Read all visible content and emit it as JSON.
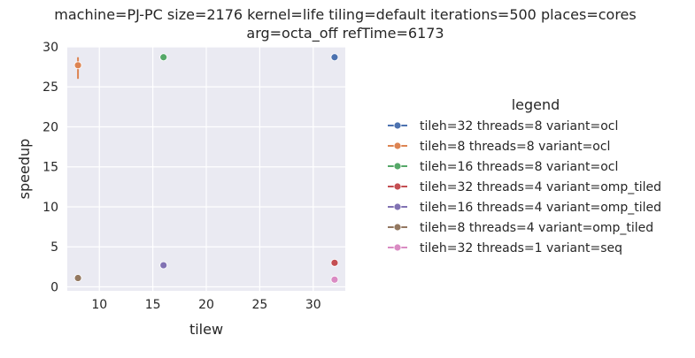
{
  "chart_data": {
    "type": "scatter",
    "title_line1": "machine=PJ-PC size=2176 kernel=life tiling=default iterations=500 places=cores",
    "title_line2": "arg=octa_off refTime=6173",
    "xlabel": "tilew",
    "ylabel": "speedup",
    "xlim": [
      7,
      33
    ],
    "ylim": [
      -0.5,
      30
    ],
    "xticks": [
      10,
      15,
      20,
      25,
      30
    ],
    "yticks": [
      0,
      5,
      10,
      15,
      20,
      25,
      30
    ],
    "grid": true,
    "legend_title": "legend",
    "legend_position": "right",
    "series": [
      {
        "name": "tileh=32 threads=8 variant=ocl",
        "color": "#4c72b0",
        "x": [
          32
        ],
        "y": [
          28.7
        ]
      },
      {
        "name": "tileh=8 threads=8 variant=ocl",
        "color": "#dd8452",
        "x": [
          8
        ],
        "y": [
          27.7
        ],
        "err_low": [
          26.0
        ],
        "err_high": [
          28.7
        ]
      },
      {
        "name": "tileh=16 threads=8 variant=ocl",
        "color": "#55a868",
        "x": [
          16
        ],
        "y": [
          28.7
        ]
      },
      {
        "name": "tileh=32 threads=4 variant=omp_tiled",
        "color": "#c44e52",
        "x": [
          32
        ],
        "y": [
          3.0
        ]
      },
      {
        "name": "tileh=16 threads=4 variant=omp_tiled",
        "color": "#8172b3",
        "x": [
          16
        ],
        "y": [
          2.7
        ]
      },
      {
        "name": "tileh=8 threads=4 variant=omp_tiled",
        "color": "#937860",
        "x": [
          8
        ],
        "y": [
          1.1
        ]
      },
      {
        "name": "tileh=32 threads=1 variant=seq",
        "color": "#da8bc3",
        "x": [
          32
        ],
        "y": [
          0.9
        ]
      }
    ]
  }
}
